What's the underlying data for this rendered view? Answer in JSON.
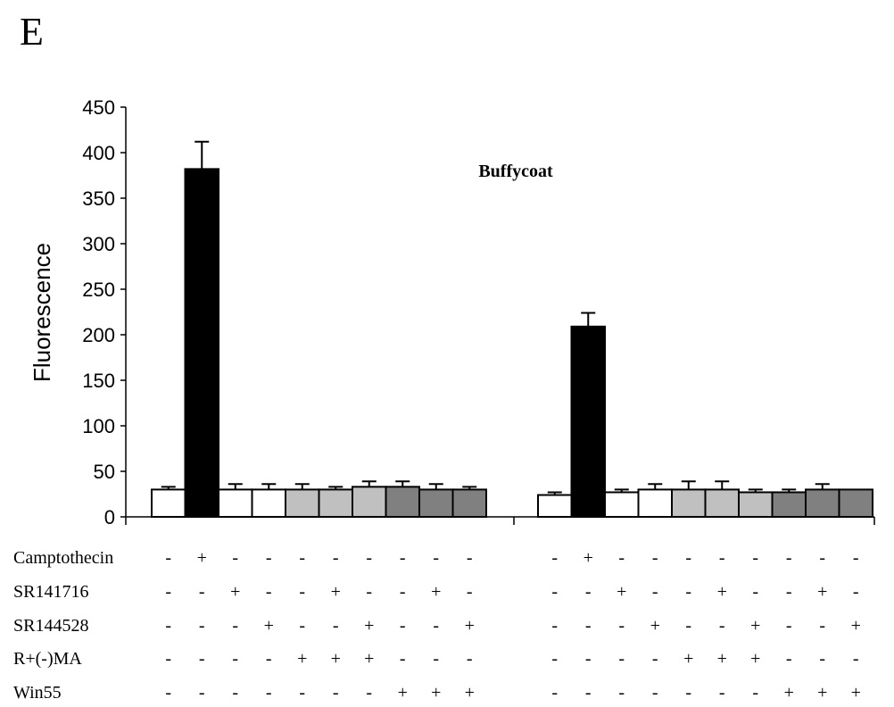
{
  "panel_letter": "E",
  "chart_data": {
    "type": "bar",
    "title": "Buffycoat",
    "xlabel": "",
    "ylabel": "Fluorescence",
    "ylim": [
      0,
      450
    ],
    "yticks": [
      0,
      50,
      100,
      150,
      200,
      250,
      300,
      350,
      400,
      450
    ],
    "grid": false,
    "legend": "none",
    "colors": {
      "white": "#ffffff",
      "black": "#000000",
      "light": "#c0c0c0",
      "dark": "#808080"
    },
    "groups": [
      {
        "bars": [
          {
            "value": 30,
            "error": 3,
            "color": "white"
          },
          {
            "value": 382,
            "error": 30,
            "color": "black"
          },
          {
            "value": 30,
            "error": 6,
            "color": "white"
          },
          {
            "value": 30,
            "error": 6,
            "color": "white"
          },
          {
            "value": 30,
            "error": 6,
            "color": "light"
          },
          {
            "value": 30,
            "error": 3,
            "color": "light"
          },
          {
            "value": 33,
            "error": 6,
            "color": "light"
          },
          {
            "value": 33,
            "error": 6,
            "color": "dark"
          },
          {
            "value": 30,
            "error": 6,
            "color": "dark"
          },
          {
            "value": 30,
            "error": 3,
            "color": "dark"
          }
        ]
      },
      {
        "bars": [
          {
            "value": 24,
            "error": 3,
            "color": "white"
          },
          {
            "value": 209,
            "error": 15,
            "color": "black"
          },
          {
            "value": 27,
            "error": 3,
            "color": "white"
          },
          {
            "value": 30,
            "error": 6,
            "color": "white"
          },
          {
            "value": 30,
            "error": 9,
            "color": "light"
          },
          {
            "value": 30,
            "error": 9,
            "color": "light"
          },
          {
            "value": 27,
            "error": 3,
            "color": "light"
          },
          {
            "value": 27,
            "error": 3,
            "color": "dark"
          },
          {
            "value": 30,
            "error": 6,
            "color": "dark"
          },
          {
            "value": 30,
            "error": 0,
            "color": "dark"
          }
        ]
      }
    ],
    "treatment_rows": [
      {
        "label": "Camptothecin",
        "signs": [
          "-",
          "+",
          "-",
          "-",
          "-",
          "-",
          "-",
          "-",
          "-",
          "-"
        ]
      },
      {
        "label": "SR141716",
        "signs": [
          "-",
          "-",
          "+",
          "-",
          "-",
          "+",
          "-",
          "-",
          "+",
          "-"
        ]
      },
      {
        "label": "SR144528",
        "signs": [
          "-",
          "-",
          "-",
          "+",
          "-",
          "-",
          "+",
          "-",
          "-",
          "+"
        ]
      },
      {
        "label": "R+(-)MA",
        "signs": [
          "-",
          "-",
          "-",
          "-",
          "+",
          "+",
          "+",
          "-",
          "-",
          "-"
        ]
      },
      {
        "label": "Win55",
        "signs": [
          "-",
          "-",
          "-",
          "-",
          "-",
          "-",
          "-",
          "+",
          "+",
          "+"
        ]
      }
    ]
  }
}
